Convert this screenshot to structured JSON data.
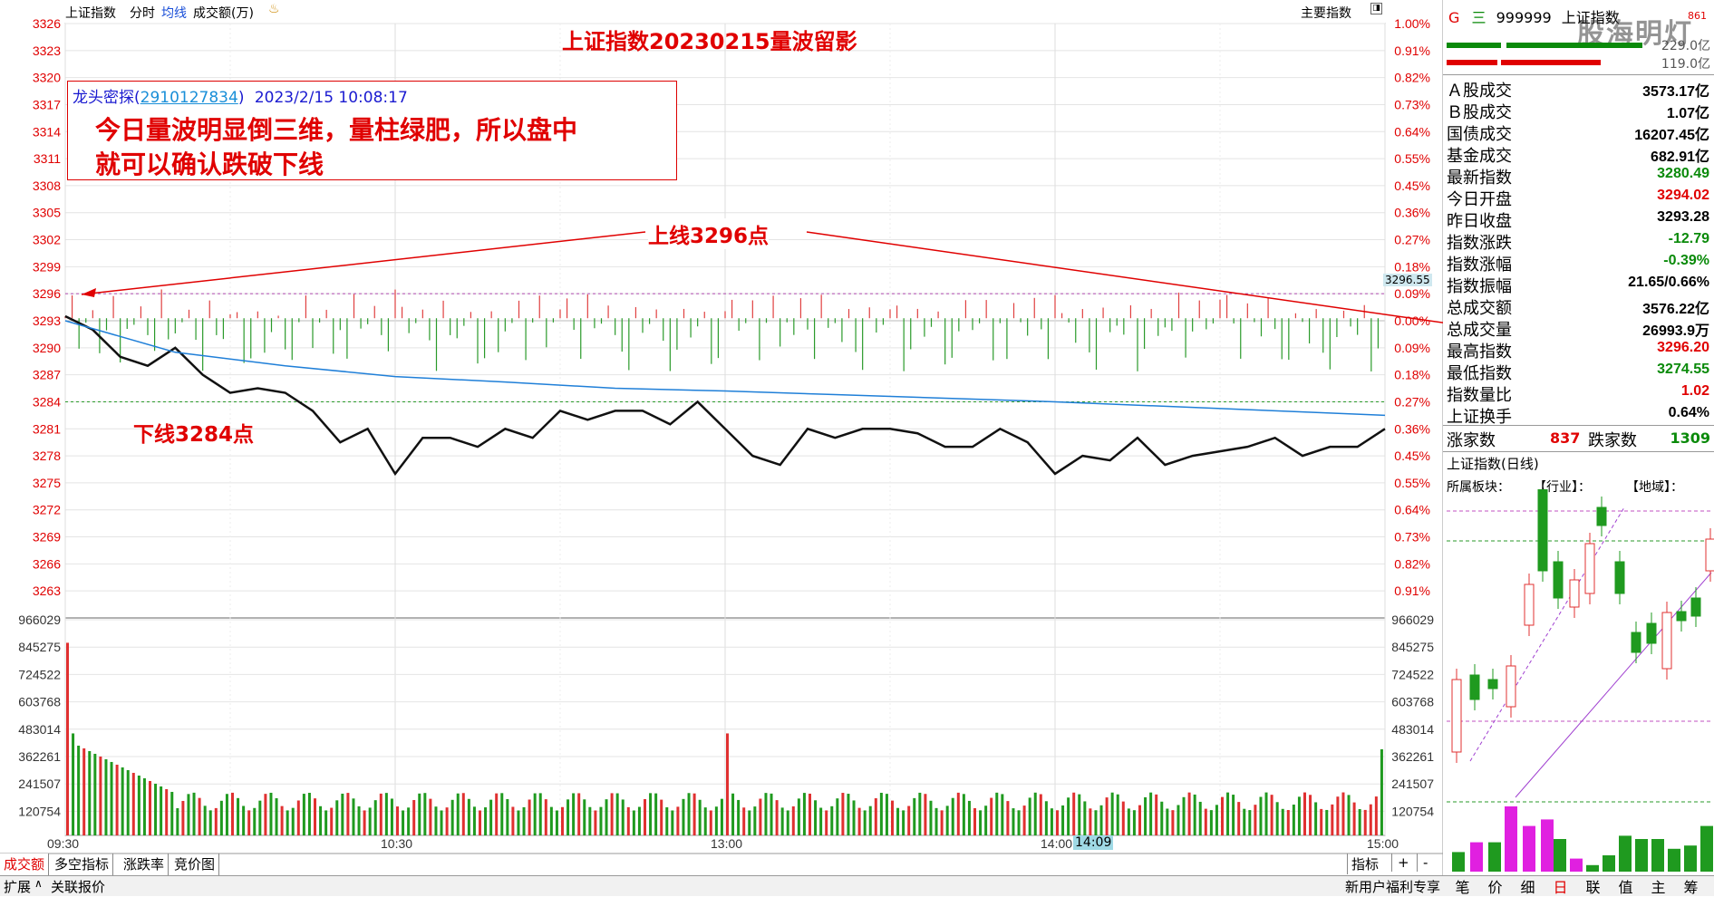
{
  "toolbar": {
    "index_name": "上证指数",
    "tab_intraday": "分时",
    "tab_avg": "均线",
    "tab_volume": "成交额(万)",
    "main_indicator": "主要指数"
  },
  "chart_data": {
    "type": "line",
    "title": "上证指数20230215量波留影",
    "price_axis": [
      3326,
      3323,
      3320,
      3317,
      3314,
      3311,
      3308,
      3305,
      3302,
      3299,
      3296,
      3293,
      3290,
      3287,
      3284,
      3281,
      3278,
      3275,
      3272,
      3269,
      3266,
      3263
    ],
    "pct_axis": [
      "1.00%",
      "0.91%",
      "0.82%",
      "0.73%",
      "0.64%",
      "0.55%",
      "0.45%",
      "0.36%",
      "0.27%",
      "0.18%",
      "0.09%",
      "0.00%",
      "0.09%",
      "0.18%",
      "0.27%",
      "0.36%",
      "0.45%",
      "0.55%",
      "0.64%",
      "0.73%",
      "0.82%",
      "0.91%"
    ],
    "volume_axis": [
      "966029",
      "845275",
      "724522",
      "603768",
      "483014",
      "362261",
      "241507",
      "120754"
    ],
    "time_axis": [
      "09:30",
      "10:30",
      "13:00",
      "14:00",
      "15:00"
    ],
    "cursor_time": "14:09",
    "cursor_price": "3296.55",
    "prev_close": 3293.28,
    "upper_line": 3296,
    "lower_line": 3284,
    "price_series": {
      "name": "上证指数",
      "x": [
        0,
        5,
        10,
        15,
        20,
        25,
        30,
        35,
        40,
        45,
        50,
        55,
        60,
        65,
        70,
        75,
        80,
        85,
        90,
        95,
        100,
        105,
        110,
        115,
        120,
        125,
        130,
        135,
        140,
        145,
        150,
        155,
        160,
        165,
        170,
        175,
        180,
        185,
        190,
        195,
        200,
        205,
        210,
        215,
        220,
        225,
        230,
        235,
        240
      ],
      "y": [
        3293.5,
        3292,
        3289,
        3288,
        3290,
        3287,
        3285,
        3285.5,
        3285,
        3283,
        3279.5,
        3281,
        3276,
        3280,
        3280,
        3279,
        3281,
        3280,
        3283,
        3282,
        3283,
        3283,
        3281.5,
        3284,
        3281,
        3278,
        3277,
        3281,
        3280,
        3281,
        3281,
        3280.5,
        3279,
        3279,
        3281,
        3279.5,
        3276,
        3278,
        3277.5,
        3280,
        3277,
        3278,
        3278.5,
        3279,
        3280,
        3278,
        3279,
        3279,
        3281
      ]
    },
    "avg_series": {
      "name": "均线",
      "x": [
        0,
        20,
        40,
        60,
        80,
        100,
        120,
        140,
        160,
        180,
        200,
        220,
        240
      ],
      "y": [
        3293,
        3289.5,
        3288,
        3286.8,
        3286.2,
        3285.5,
        3285.2,
        3284.8,
        3284.4,
        3284.0,
        3283.5,
        3283.0,
        3282.5
      ]
    },
    "annotations": {
      "upper_label": "上线3296点",
      "lower_label": "下线3284点"
    }
  },
  "annotation_box": {
    "author": "龙头密探(",
    "author_id": "2910127834",
    "author_close": ")",
    "datetime": "2023/2/15 10:08:17",
    "line1": "今日量波明显倒三维，量柱绿肥，所以盘中",
    "line2": "就可以确认跌破下线"
  },
  "side": {
    "marker_g": "G",
    "marker_three": "三",
    "code": "999999",
    "name": "上证指数",
    "watermark": "股海明灯",
    "bar_val_1": "229.0亿",
    "bar_val_2": "119.0亿",
    "corner_tag": "861",
    "rows": [
      {
        "label": "Ａ股成交",
        "value": "3573.17亿",
        "color": "#000"
      },
      {
        "label": "Ｂ股成交",
        "value": "1.07亿",
        "color": "#000"
      },
      {
        "label": "国债成交",
        "value": "16207.45亿",
        "color": "#000"
      },
      {
        "label": "基金成交",
        "value": "682.91亿",
        "color": "#000"
      },
      {
        "label": "最新指数",
        "value": "3280.49",
        "color": "#0a8a0a"
      },
      {
        "label": "今日开盘",
        "value": "3294.02",
        "color": "#e00000"
      },
      {
        "label": "昨日收盘",
        "value": "3293.28",
        "color": "#000"
      },
      {
        "label": "指数涨跌",
        "value": "-12.79",
        "color": "#0a8a0a"
      },
      {
        "label": "指数涨幅",
        "value": "-0.39%",
        "color": "#0a8a0a"
      },
      {
        "label": "指数振幅",
        "value": "21.65/0.66%",
        "color": "#000"
      },
      {
        "label": "总成交额",
        "value": "3576.22亿",
        "color": "#000"
      },
      {
        "label": "总成交量",
        "value": "26993.9万",
        "color": "#000"
      },
      {
        "label": "最高指数",
        "value": "3296.20",
        "color": "#e00000"
      },
      {
        "label": "最低指数",
        "value": "3274.55",
        "color": "#0a8a0a"
      },
      {
        "label": "指数量比",
        "value": "1.02",
        "color": "#e00000"
      },
      {
        "label": "上证换手",
        "value": "0.64%",
        "color": "#000"
      }
    ],
    "up_label": "涨家数",
    "up_count": "837",
    "down_label": "跌家数",
    "down_count": "1309",
    "daily_title": "上证指数(日线)",
    "sector_label": "所属板块：",
    "industry_label": "【行业】：",
    "region_label": "【地域】：",
    "bottom_tabs": [
      "笔",
      "价",
      "细",
      "日",
      "联",
      "值",
      "主",
      "筹"
    ]
  },
  "bottom": {
    "tabs": [
      "成交额",
      "多空指标",
      "涨跌率",
      "竞价图"
    ],
    "right_tabs": [
      "指标",
      "+",
      "-"
    ],
    "expand": "扩展",
    "related": "关联报价",
    "news": "新用户福利专享"
  }
}
